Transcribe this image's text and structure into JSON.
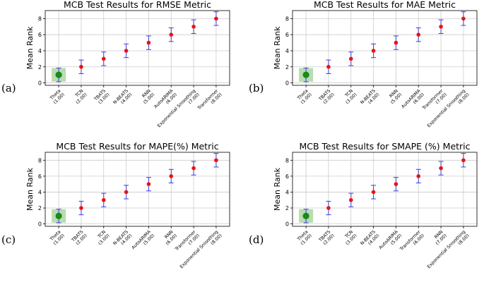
{
  "chart_data": [
    {
      "type": "scatter",
      "panel_label": "(a)",
      "title": "MCB Test Results for RMSE Metric",
      "xlabel": "",
      "ylabel": "Mean Rank",
      "ylim": [
        -0.3,
        9.0
      ],
      "yticks": [
        0,
        2,
        4,
        6,
        8
      ],
      "grid": true,
      "categories": [
        "Theta\n(1.00)",
        "TCN\n(2.00)",
        "TBATS\n(3.00)",
        "N-BEATS\n(4.00)",
        "RNN\n(5.00)",
        "AutoARIMA\n(6.00)",
        "Exponential Smoothing\n(7.00)",
        "Transformer\n(8.00)"
      ],
      "values": [
        1,
        2,
        3,
        4,
        5,
        6,
        7,
        8
      ],
      "error": 0.85,
      "best_index": 0
    },
    {
      "type": "scatter",
      "panel_label": "(b)",
      "title": "MCB Test Results for MAE Metric",
      "xlabel": "",
      "ylabel": "Mean Rank",
      "ylim": [
        -0.3,
        9.0
      ],
      "yticks": [
        0,
        2,
        4,
        6,
        8
      ],
      "grid": true,
      "categories": [
        "Theta\n(1.00)",
        "TBATS\n(2.00)",
        "TCN\n(3.00)",
        "N-BEATS\n(4.00)",
        "RNN\n(5.00)",
        "AutoARIMA\n(6.00)",
        "Transformer\n(7.00)",
        "Exponential Smoothing\n(8.00)"
      ],
      "values": [
        1,
        2,
        3,
        4,
        5,
        6,
        7,
        8
      ],
      "error": 0.85,
      "best_index": 0
    },
    {
      "type": "scatter",
      "panel_label": "(c)",
      "title": "MCB Test Results for MAPE(%) Metric",
      "xlabel": "",
      "ylabel": "Mean Rank",
      "ylim": [
        -0.3,
        9.0
      ],
      "yticks": [
        0,
        2,
        4,
        6,
        8
      ],
      "grid": true,
      "categories": [
        "Theta\n(1.00)",
        "TBATS\n(2.00)",
        "TCN\n(3.00)",
        "N-BEATS\n(4.00)",
        "AutoARIMA\n(5.00)",
        "RNN\n(6.00)",
        "Transformer\n(7.00)",
        "Exponential Smoothing\n(8.00)"
      ],
      "values": [
        1,
        2,
        3,
        4,
        5,
        6,
        7,
        8
      ],
      "error": 0.85,
      "best_index": 0
    },
    {
      "type": "scatter",
      "panel_label": "(d)",
      "title": "MCB Test Results for SMAPE (%) Metric",
      "xlabel": "",
      "ylabel": "Mean Rank",
      "ylim": [
        -0.3,
        9.0
      ],
      "yticks": [
        0,
        2,
        4,
        6,
        8
      ],
      "grid": true,
      "categories": [
        "Theta\n(1.00)",
        "TBATS\n(2.00)",
        "TCN\n(3.00)",
        "N-BEATS\n(4.00)",
        "AutoARIMA\n(5.00)",
        "Transformer\n(6.00)",
        "RNN\n(7.00)",
        "Exponential Smoothing\n(8.00)"
      ],
      "values": [
        1,
        2,
        3,
        4,
        5,
        6,
        7,
        8
      ],
      "error": 0.85,
      "best_index": 0
    }
  ],
  "colors": {
    "best_marker": "#1a8a1a",
    "marker": "#ee1111",
    "errorbar": "#3b3bdd",
    "highlight": "#b9dcb0",
    "grid": "#cccccc",
    "axis": "#000000"
  }
}
